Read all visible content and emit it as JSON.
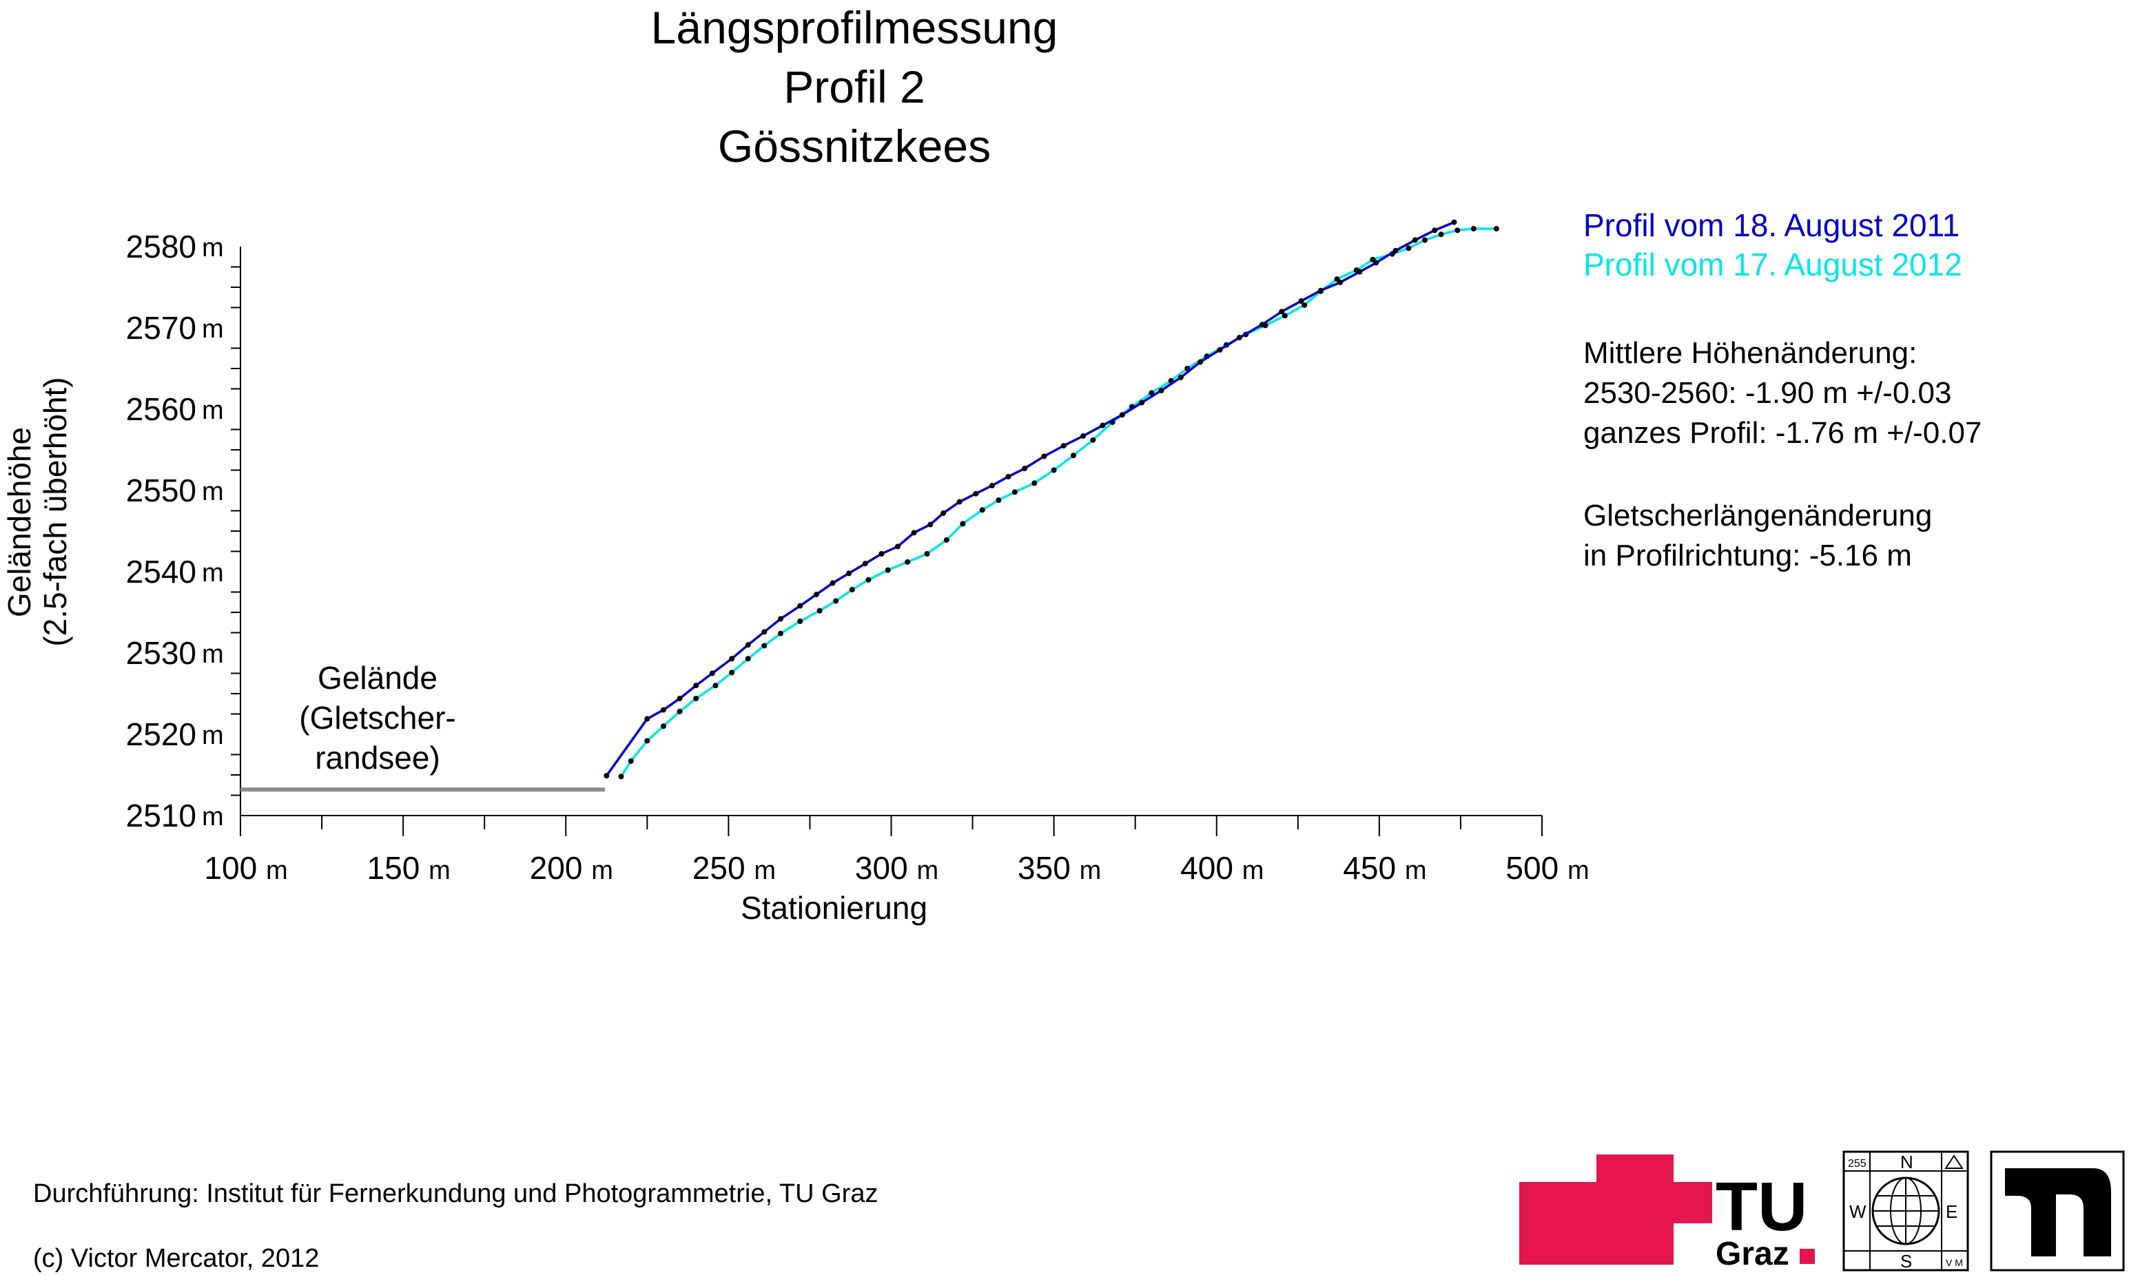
{
  "title_lines": [
    "Längsprofilmessung",
    "Profil 2",
    "Gössnitzkees"
  ],
  "chart_data": {
    "type": "line",
    "xlabel": "Stationierung",
    "ylabel_lines": [
      "Geländehöhe",
      "(2.5-fach überhöht)"
    ],
    "xlim": [
      100,
      500
    ],
    "ylim": [
      2510,
      2580
    ],
    "x_ticks": [
      {
        "value": 100,
        "label": "100",
        "unit": "m"
      },
      {
        "value": 150,
        "label": "150",
        "unit": "m"
      },
      {
        "value": 200,
        "label": "200",
        "unit": "m"
      },
      {
        "value": 250,
        "label": "250",
        "unit": "m"
      },
      {
        "value": 300,
        "label": "300",
        "unit": "m"
      },
      {
        "value": 350,
        "label": "350",
        "unit": "m"
      },
      {
        "value": 400,
        "label": "400",
        "unit": "m"
      },
      {
        "value": 450,
        "label": "450",
        "unit": "m"
      },
      {
        "value": 500,
        "label": "500",
        "unit": "m"
      }
    ],
    "y_ticks": [
      {
        "value": 2510,
        "label": "2510",
        "unit": "m"
      },
      {
        "value": 2520,
        "label": "2520",
        "unit": "m"
      },
      {
        "value": 2530,
        "label": "2530",
        "unit": "m"
      },
      {
        "value": 2540,
        "label": "2540",
        "unit": "m"
      },
      {
        "value": 2550,
        "label": "2550",
        "unit": "m"
      },
      {
        "value": 2560,
        "label": "2560",
        "unit": "m"
      },
      {
        "value": 2570,
        "label": "2570",
        "unit": "m"
      },
      {
        "value": 2580,
        "label": "2580",
        "unit": "m"
      }
    ],
    "grid": false,
    "legend_position": "top-right",
    "terrain": {
      "label_lines": [
        "Gelände",
        "(Gletscher-",
        "randsee)"
      ],
      "x": [
        100,
        212
      ],
      "y": 2513.2,
      "color": "#8c8c8c"
    },
    "series": [
      {
        "name": "Profil vom 18. August 2011",
        "color": "#0000cc",
        "x": [
          212.5,
          225,
          230,
          235,
          240,
          245,
          251,
          256,
          261,
          266,
          272,
          277,
          282,
          287,
          292,
          297,
          302,
          307,
          312,
          316,
          321,
          326,
          331,
          336,
          341,
          347,
          353,
          359,
          365,
          371,
          377,
          383,
          389,
          395,
          401,
          407,
          414,
          420,
          426,
          432,
          438,
          444,
          449,
          455,
          461,
          467,
          473
        ],
        "y": [
          2514.9,
          2521.9,
          2523.0,
          2524.4,
          2526.0,
          2527.5,
          2529.3,
          2531.0,
          2532.6,
          2534.2,
          2535.8,
          2537.2,
          2538.6,
          2539.8,
          2541.0,
          2542.2,
          2543.1,
          2544.8,
          2545.8,
          2547.2,
          2548.6,
          2549.6,
          2550.6,
          2551.7,
          2552.7,
          2554.2,
          2555.5,
          2556.7,
          2558.0,
          2559.3,
          2560.8,
          2562.3,
          2563.9,
          2565.8,
          2567.3,
          2568.8,
          2570.4,
          2572.0,
          2573.3,
          2574.6,
          2575.6,
          2576.9,
          2578.0,
          2579.5,
          2580.8,
          2582.0,
          2583.0
        ]
      },
      {
        "name": "Profil vom 17. August 2012",
        "color": "#00e6e6",
        "x": [
          217,
          220,
          225,
          230,
          235,
          240,
          246,
          251,
          256,
          261,
          266,
          272,
          278,
          283,
          288,
          293,
          299,
          305,
          311,
          317,
          322,
          328,
          333,
          338,
          344,
          350,
          356,
          362,
          368,
          374,
          380,
          386,
          391,
          397,
          403,
          409,
          415,
          421,
          427,
          432,
          437,
          443,
          448,
          454,
          459,
          464,
          469,
          474,
          479,
          486
        ],
        "y": [
          2514.8,
          2516.7,
          2519.2,
          2521.0,
          2522.8,
          2524.4,
          2526.0,
          2527.6,
          2529.3,
          2530.9,
          2532.4,
          2533.9,
          2535.2,
          2536.4,
          2537.8,
          2539.0,
          2540.2,
          2541.2,
          2542.2,
          2543.9,
          2545.9,
          2547.6,
          2548.8,
          2549.8,
          2550.9,
          2552.5,
          2554.3,
          2556.2,
          2558.4,
          2560.3,
          2562.0,
          2563.5,
          2565.0,
          2566.5,
          2567.9,
          2569.2,
          2570.3,
          2571.5,
          2572.8,
          2574.5,
          2576.0,
          2577.1,
          2578.4,
          2579.1,
          2579.8,
          2580.8,
          2581.5,
          2582.0,
          2582.2,
          2582.2
        ]
      }
    ],
    "data_point_color": "#000000"
  },
  "stats": {
    "line1": "Mittlere Höhenänderung:",
    "line2": "2530-2560: -1.90 m  +/-0.03",
    "line3": "ganzes Profil: -1.76 m  +/-0.07",
    "line4": "Gletscherlängenänderung",
    "line5": "in Profilrichtung: -5.16 m"
  },
  "footer": {
    "credit": "Durchführung: Institut für Fernerkundung und Photogrammetrie, TU Graz",
    "copyright": "(c) Victor Mercator, 2012"
  },
  "logos": {
    "tu": {
      "name": "tu-graz-logo",
      "text_top": "TU",
      "text_bottom": "Graz",
      "color": "#e4154b"
    },
    "compass": {
      "name": "compass-map-icon",
      "n": "N",
      "s": "S",
      "w": "W",
      "e": "E",
      "num": "255",
      "corner": "V M"
    },
    "mark": {
      "name": "black-arch-logo"
    }
  }
}
